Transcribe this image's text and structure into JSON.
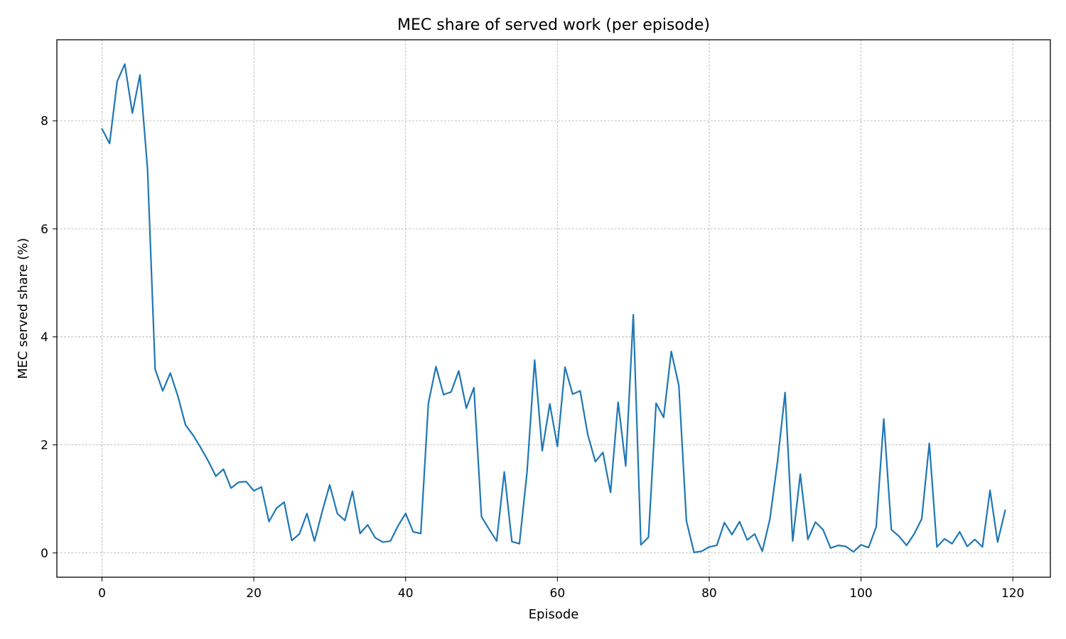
{
  "chart_data": {
    "type": "line",
    "title": "MEC share of served work (per episode)",
    "xlabel": "Episode",
    "ylabel": "MEC served share (%)",
    "xlim": [
      -5.95,
      124.95
    ],
    "ylim": [
      -0.45,
      9.5
    ],
    "xticks": [
      0,
      20,
      40,
      60,
      80,
      100,
      120
    ],
    "yticks": [
      0,
      2,
      4,
      6,
      8
    ],
    "grid": true,
    "series_color": "#1f77b4",
    "series": [
      {
        "values": [
          7.85,
          7.58,
          8.73,
          9.05,
          8.14,
          8.85,
          7.1,
          3.4,
          3.0,
          3.33,
          2.9,
          2.37,
          2.18,
          1.95,
          1.7,
          1.42,
          1.55,
          1.2,
          1.31,
          1.32,
          1.15,
          1.22,
          0.58,
          0.83,
          0.94,
          0.23,
          0.35,
          0.73,
          0.22,
          0.76,
          1.26,
          0.73,
          0.6,
          1.14,
          0.36,
          0.52,
          0.28,
          0.2,
          0.22,
          0.5,
          0.73,
          0.39,
          0.36,
          2.77,
          3.45,
          2.93,
          2.98,
          3.37,
          2.68,
          3.06,
          0.67,
          0.44,
          0.22,
          1.5,
          0.21,
          0.17,
          1.5,
          3.57,
          1.89,
          2.76,
          1.97,
          3.44,
          2.94,
          3.0,
          2.19,
          1.69,
          1.86,
          1.12,
          2.79,
          1.61,
          4.41,
          0.15,
          0.29,
          2.77,
          2.51,
          3.73,
          3.1,
          0.59,
          0.01,
          0.03,
          0.11,
          0.14,
          0.56,
          0.34,
          0.58,
          0.24,
          0.35,
          0.03,
          0.63,
          1.69,
          2.97,
          0.22,
          1.46,
          0.25,
          0.57,
          0.43,
          0.09,
          0.14,
          0.12,
          0.02,
          0.15,
          0.1,
          0.48,
          2.48,
          0.43,
          0.31,
          0.14,
          0.35,
          0.63,
          2.03,
          0.11,
          0.26,
          0.17,
          0.39,
          0.12,
          0.25,
          0.11,
          1.16,
          0.2,
          0.79
        ]
      }
    ]
  }
}
